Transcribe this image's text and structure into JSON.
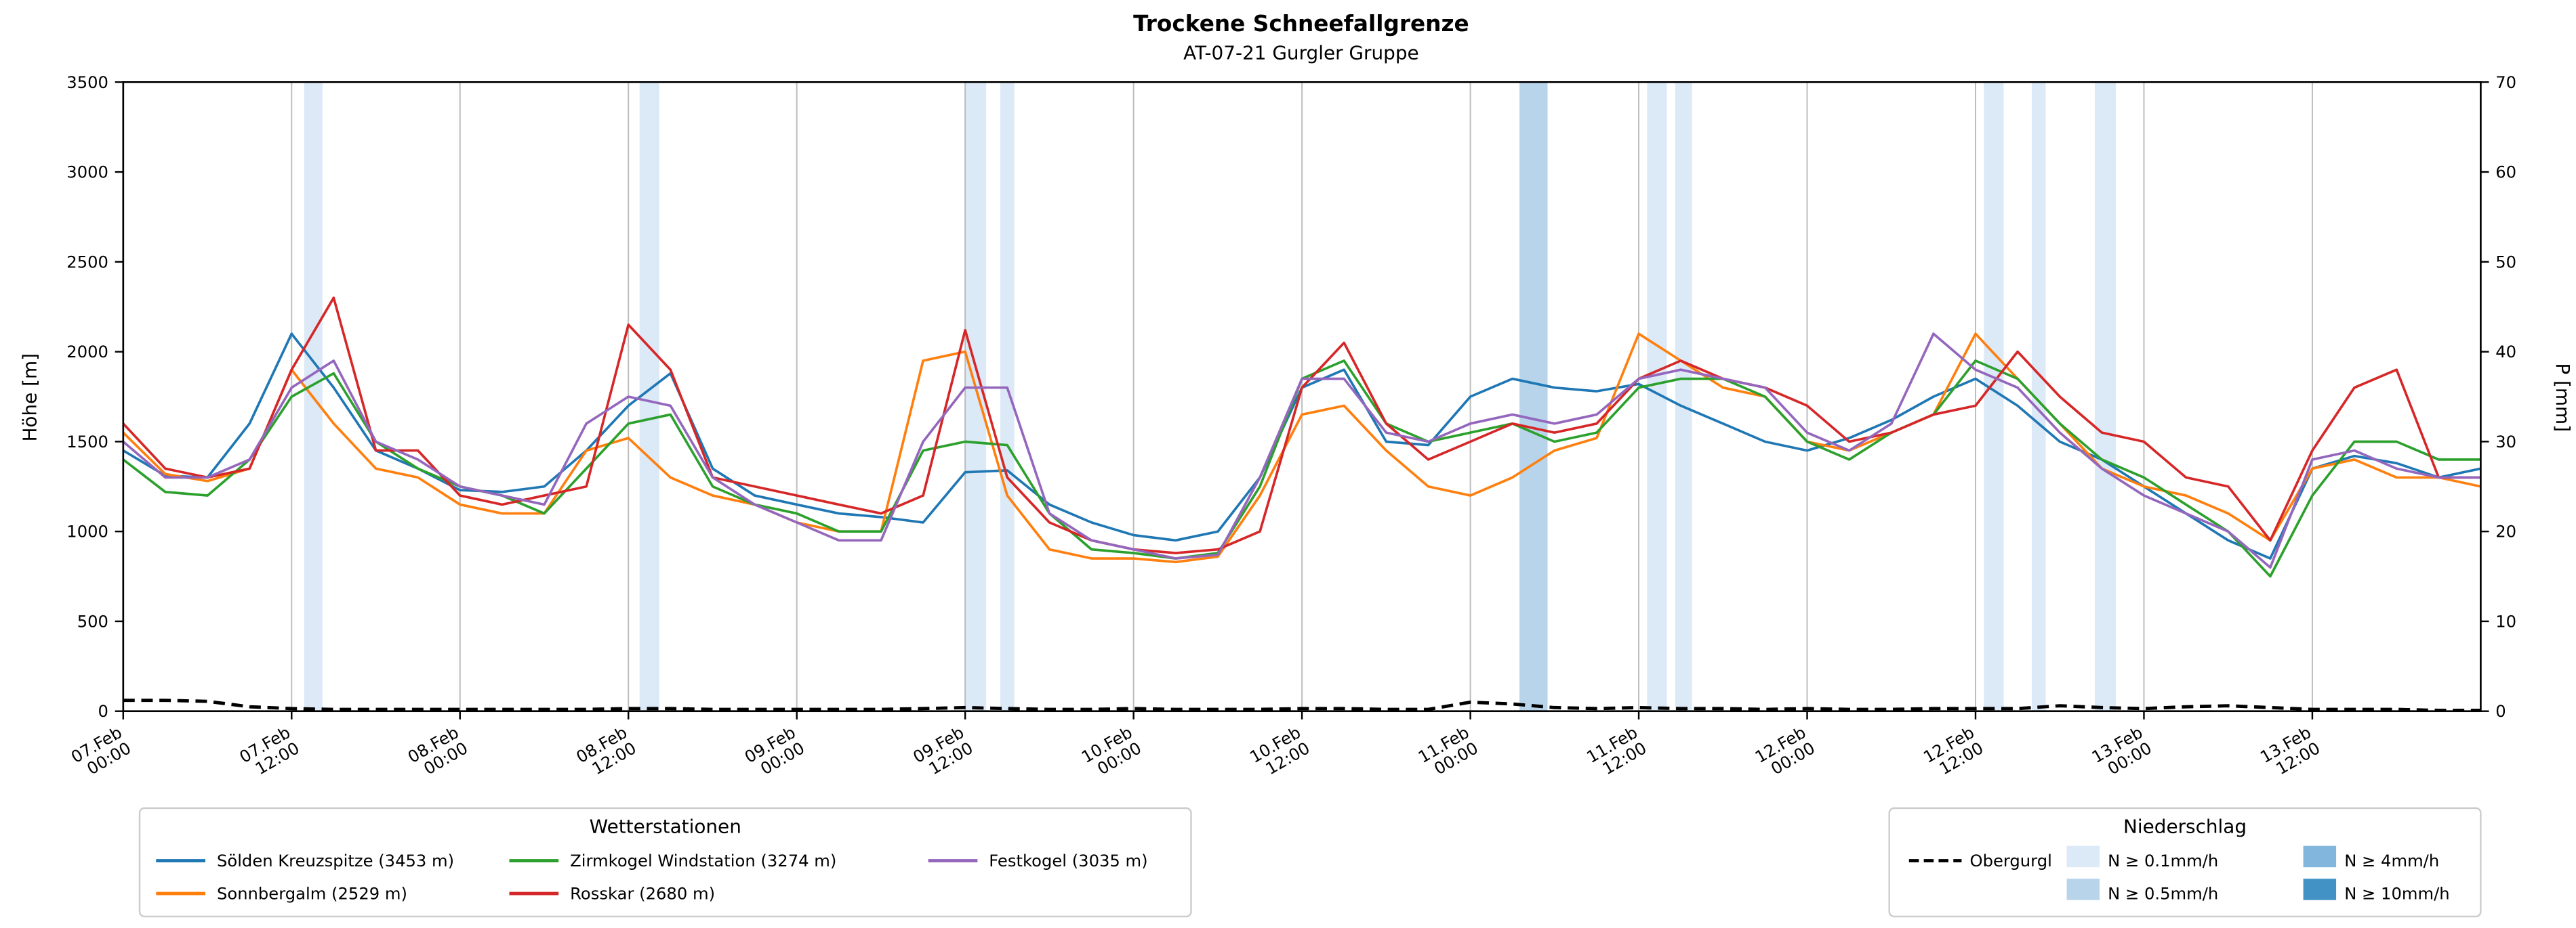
{
  "chart_data": {
    "type": "line",
    "title": "Trockene Schneefallgrenze",
    "subtitle": "AT-07-21 Gurgler Gruppe",
    "ylabel_left": "Höhe [m]",
    "ylabel_right": "P [mm]",
    "ylim_left": [
      0,
      3500
    ],
    "ylim_right": [
      0,
      70
    ],
    "yticks_left": [
      0,
      500,
      1000,
      1500,
      2000,
      2500,
      3000,
      3500
    ],
    "yticks_right": [
      0,
      10,
      20,
      30,
      40,
      50,
      60,
      70
    ],
    "x_unit": "hours since 07.Feb 00:00",
    "x_start": 0,
    "x_step": 3,
    "x_end": 168,
    "x_tick_interval_hours": 12,
    "x_tick_labels": [
      {
        "date": "07.Feb",
        "time": "00:00"
      },
      {
        "date": "07.Feb",
        "time": "12:00"
      },
      {
        "date": "08.Feb",
        "time": "00:00"
      },
      {
        "date": "08.Feb",
        "time": "12:00"
      },
      {
        "date": "09.Feb",
        "time": "00:00"
      },
      {
        "date": "09.Feb",
        "time": "12:00"
      },
      {
        "date": "10.Feb",
        "time": "00:00"
      },
      {
        "date": "10.Feb",
        "time": "12:00"
      },
      {
        "date": "11.Feb",
        "time": "00:00"
      },
      {
        "date": "11.Feb",
        "time": "12:00"
      },
      {
        "date": "12.Feb",
        "time": "00:00"
      },
      {
        "date": "12.Feb",
        "time": "12:00"
      },
      {
        "date": "13.Feb",
        "time": "00:00"
      },
      {
        "date": "13.Feb",
        "time": "12:00"
      }
    ],
    "legend_stations_title": "Wetterstationen",
    "legend_precip_title": "Niederschlag",
    "series": [
      {
        "name": "Sölden Kreuzspitze (3453 m)",
        "slug": "soelden-kreuzspitze",
        "color": "#1f77b4",
        "axis": "left",
        "dashed": false,
        "values": [
          1450,
          1310,
          1300,
          1600,
          2100,
          1800,
          1450,
          1350,
          1230,
          1220,
          1250,
          1450,
          1700,
          1880,
          1350,
          1200,
          1150,
          1100,
          1080,
          1050,
          1330,
          1340,
          1150,
          1050,
          980,
          950,
          1000,
          1300,
          1800,
          1900,
          1500,
          1480,
          1750,
          1850,
          1800,
          1780,
          1820,
          1700,
          1600,
          1500,
          1450,
          1520,
          1620,
          1750,
          1850,
          1700,
          1500,
          1400,
          1250,
          1100,
          950,
          850,
          1350,
          1420,
          1380,
          1300,
          1350
        ]
      },
      {
        "name": "Sonnbergalm (2529 m)",
        "slug": "sonnbergalm",
        "color": "#ff7f0e",
        "axis": "left",
        "dashed": false,
        "values": [
          1550,
          1320,
          1280,
          1350,
          1900,
          1600,
          1350,
          1300,
          1150,
          1100,
          1100,
          1450,
          1520,
          1300,
          1200,
          1150,
          1050,
          1000,
          1000,
          1950,
          2000,
          1200,
          900,
          850,
          850,
          830,
          860,
          1200,
          1650,
          1700,
          1450,
          1250,
          1200,
          1300,
          1450,
          1520,
          2100,
          1950,
          1800,
          1750,
          1500,
          1450,
          1550,
          1650,
          2100,
          1850,
          1600,
          1350,
          1250,
          1200,
          1100,
          950,
          1350,
          1400,
          1300,
          1300,
          1250
        ]
      },
      {
        "name": "Zirmkogel Windstation (3274 m)",
        "slug": "zirmkogel-windstation",
        "color": "#2ca02c",
        "axis": "left",
        "dashed": false,
        "values": [
          1400,
          1220,
          1200,
          1400,
          1750,
          1880,
          1500,
          1350,
          1250,
          1200,
          1100,
          1350,
          1600,
          1650,
          1250,
          1150,
          1100,
          1000,
          1000,
          1450,
          1500,
          1480,
          1100,
          900,
          880,
          850,
          880,
          1250,
          1850,
          1950,
          1600,
          1500,
          1550,
          1600,
          1500,
          1550,
          1800,
          1850,
          1850,
          1750,
          1500,
          1400,
          1550,
          1650,
          1950,
          1850,
          1600,
          1400,
          1300,
          1150,
          1000,
          750,
          1200,
          1500,
          1500,
          1400,
          1400
        ]
      },
      {
        "name": "Rosskar (2680 m)",
        "slug": "rosskar",
        "color": "#d62728",
        "axis": "left",
        "dashed": false,
        "values": [
          1600,
          1350,
          1300,
          1350,
          1900,
          2300,
          1450,
          1450,
          1200,
          1150,
          1200,
          1250,
          2150,
          1900,
          1300,
          1250,
          1200,
          1150,
          1100,
          1200,
          2120,
          1300,
          1050,
          950,
          900,
          880,
          900,
          1000,
          1800,
          2050,
          1600,
          1400,
          1500,
          1600,
          1550,
          1600,
          1850,
          1950,
          1850,
          1800,
          1700,
          1500,
          1550,
          1650,
          1700,
          2000,
          1750,
          1550,
          1500,
          1300,
          1250,
          950,
          1450,
          1800,
          1900,
          1300,
          1300
        ]
      },
      {
        "name": "Festkogel (3035 m)",
        "slug": "festkogel",
        "color": "#9467bd",
        "axis": "left",
        "dashed": false,
        "values": [
          1500,
          1300,
          1300,
          1400,
          1800,
          1950,
          1500,
          1400,
          1250,
          1200,
          1150,
          1600,
          1750,
          1700,
          1300,
          1150,
          1050,
          950,
          950,
          1500,
          1800,
          1800,
          1100,
          950,
          900,
          850,
          870,
          1300,
          1850,
          1850,
          1550,
          1500,
          1600,
          1650,
          1600,
          1650,
          1850,
          1900,
          1850,
          1800,
          1550,
          1450,
          1600,
          2100,
          1900,
          1800,
          1550,
          1350,
          1200,
          1100,
          1000,
          800,
          1400,
          1450,
          1350,
          1300,
          1300
        ]
      },
      {
        "name": "Obergurgl",
        "slug": "obergurgl",
        "color": "#000000",
        "axis": "right",
        "dashed": true,
        "values": [
          1.2,
          1.2,
          1.1,
          0.5,
          0.3,
          0.2,
          0.2,
          0.2,
          0.2,
          0.2,
          0.2,
          0.2,
          0.3,
          0.3,
          0.2,
          0.2,
          0.2,
          0.2,
          0.2,
          0.3,
          0.4,
          0.3,
          0.2,
          0.2,
          0.3,
          0.2,
          0.2,
          0.2,
          0.3,
          0.3,
          0.2,
          0.2,
          1.0,
          0.8,
          0.4,
          0.3,
          0.4,
          0.3,
          0.3,
          0.2,
          0.3,
          0.2,
          0.2,
          0.3,
          0.3,
          0.3,
          0.6,
          0.4,
          0.3,
          0.5,
          0.6,
          0.4,
          0.2,
          0.2,
          0.2,
          0.1,
          0.1
        ]
      }
    ],
    "precip_levels": [
      {
        "key": "0.1",
        "label": "N ≥ 0.1mm/h",
        "color": "#dce9f6"
      },
      {
        "key": "0.5",
        "label": "N ≥ 0.5mm/h",
        "color": "#b8d4ea"
      },
      {
        "key": "4",
        "label": "N ≥ 4mm/h",
        "color": "#82b6dc"
      },
      {
        "key": "10",
        "label": "N ≥ 10mm/h",
        "color": "#4292c6"
      }
    ],
    "precip_bands": [
      {
        "start": 12.9,
        "end": 14.2,
        "level": "0.1"
      },
      {
        "start": 36.8,
        "end": 38.2,
        "level": "0.1"
      },
      {
        "start": 60.0,
        "end": 61.5,
        "level": "0.1"
      },
      {
        "start": 62.5,
        "end": 63.5,
        "level": "0.1"
      },
      {
        "start": 99.5,
        "end": 101.5,
        "level": "0.5"
      },
      {
        "start": 108.6,
        "end": 110.0,
        "level": "0.1"
      },
      {
        "start": 110.6,
        "end": 111.8,
        "level": "0.1"
      },
      {
        "start": 132.6,
        "end": 134.0,
        "level": "0.1"
      },
      {
        "start": 136.0,
        "end": 137.0,
        "level": "0.1"
      },
      {
        "start": 140.5,
        "end": 142.0,
        "level": "0.1"
      }
    ],
    "grid": "vertical"
  }
}
